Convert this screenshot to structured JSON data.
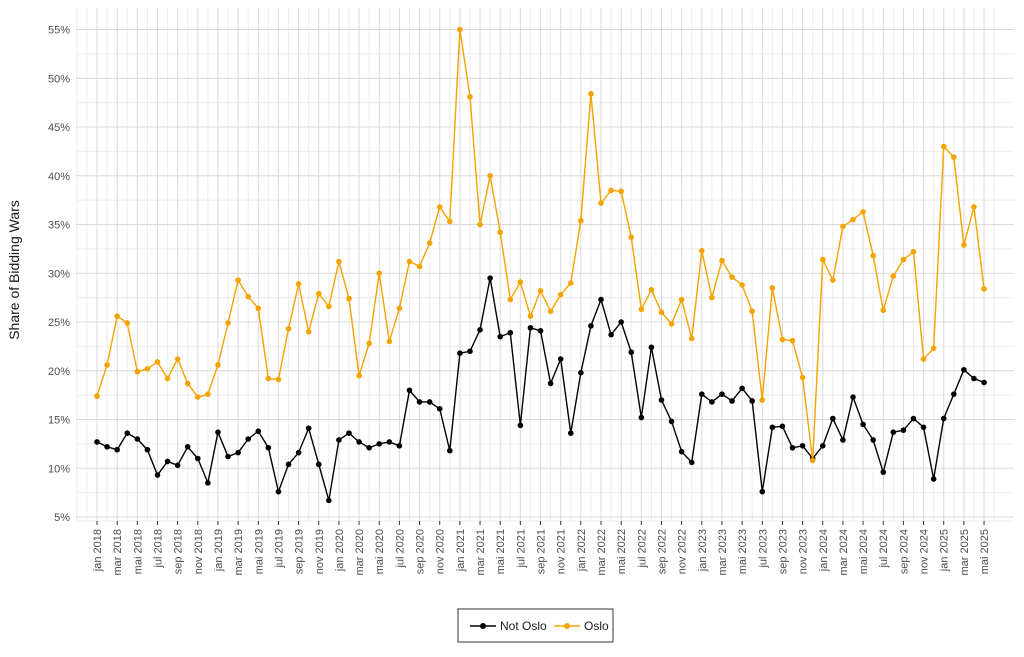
{
  "chart_data": {
    "type": "line",
    "title": "",
    "xlabel": "",
    "ylabel": "Share of Bidding Wars",
    "ylim": [
      4,
      56
    ],
    "y_ticks": [
      "5%",
      "10%",
      "15%",
      "20%",
      "25%",
      "30%",
      "35%",
      "40%",
      "45%",
      "50%",
      "55%"
    ],
    "y_tick_values": [
      5,
      10,
      15,
      20,
      25,
      30,
      35,
      40,
      45,
      50,
      55
    ],
    "x_tick_labels": [
      "jan 2018",
      "mar 2018",
      "mai 2018",
      "jul 2018",
      "sep 2018",
      "nov 2018",
      "jan 2019",
      "mar 2019",
      "mai 2019",
      "jul 2019",
      "sep 2019",
      "nov 2019",
      "jan 2020",
      "mar 2020",
      "mai 2020",
      "jul 2020",
      "sep 2020",
      "nov 2020",
      "jan 2021",
      "mar 2021",
      "mai 2021",
      "jul 2021",
      "sep 2021",
      "nov 2021",
      "jan 2022",
      "mar 2022",
      "mai 2022",
      "jul 2022",
      "sep 2022",
      "nov 2022",
      "jan 2023",
      "mar 2023",
      "mai 2023",
      "jul 2023",
      "sep 2023",
      "nov 2023",
      "jan 2024",
      "mar 2024",
      "mai 2024",
      "jul 2024",
      "sep 2024",
      "nov 2024",
      "jan 2025",
      "mar 2025",
      "mai 2025"
    ],
    "x_start": "2018-01",
    "x_end": "2025-05",
    "grid": true,
    "legend_position": "bottom",
    "series": [
      {
        "name": "Not Oslo",
        "color": "#000000",
        "values": [
          12.7,
          12.2,
          11.9,
          13.6,
          13.0,
          11.9,
          9.3,
          10.7,
          10.3,
          12.2,
          11.0,
          8.5,
          13.7,
          11.2,
          11.6,
          13.0,
          13.8,
          12.1,
          7.6,
          10.4,
          11.6,
          14.1,
          10.4,
          6.7,
          12.9,
          13.6,
          12.7,
          12.1,
          12.5,
          12.7,
          12.3,
          18.0,
          16.8,
          16.8,
          16.1,
          11.8,
          21.8,
          22.0,
          24.2,
          29.5,
          23.5,
          23.9,
          14.4,
          24.4,
          24.1,
          18.7,
          21.2,
          13.6,
          19.8,
          24.6,
          27.3,
          23.7,
          25.0,
          21.9,
          15.2,
          22.4,
          17.0,
          14.8,
          11.7,
          10.6,
          17.6,
          16.8,
          17.6,
          16.9,
          18.2,
          16.9,
          7.6,
          14.2,
          14.3,
          12.1,
          12.3,
          11.0,
          12.3,
          15.1,
          12.9,
          17.3,
          14.5,
          12.9,
          9.6,
          13.7,
          13.9,
          15.1,
          14.2,
          8.9,
          15.1,
          17.6,
          20.1,
          19.2,
          18.8
        ]
      },
      {
        "name": "Oslo",
        "color": "#F5A300",
        "values": [
          17.4,
          20.6,
          25.6,
          24.9,
          19.9,
          20.2,
          20.9,
          19.2,
          21.2,
          18.7,
          17.3,
          17.6,
          20.6,
          24.9,
          29.3,
          27.6,
          26.4,
          19.2,
          19.1,
          24.3,
          28.9,
          24.0,
          27.9,
          26.6,
          31.2,
          27.4,
          19.5,
          22.8,
          30.0,
          23.0,
          26.4,
          31.2,
          30.7,
          33.1,
          36.8,
          35.3,
          55.0,
          48.1,
          35.0,
          40.0,
          34.2,
          27.3,
          29.1,
          25.6,
          28.2,
          26.1,
          27.8,
          29.0,
          35.4,
          48.4,
          37.2,
          38.5,
          38.4,
          33.7,
          26.3,
          28.3,
          26.0,
          24.8,
          27.3,
          23.3,
          32.3,
          27.5,
          31.3,
          29.6,
          28.8,
          26.1,
          17.0,
          28.5,
          23.2,
          23.1,
          19.3,
          10.8,
          31.4,
          29.3,
          34.8,
          35.5,
          36.3,
          31.8,
          26.2,
          29.7,
          31.4,
          32.2,
          21.2,
          22.3,
          43.0,
          41.9,
          32.9,
          36.8,
          28.4
        ]
      }
    ]
  }
}
